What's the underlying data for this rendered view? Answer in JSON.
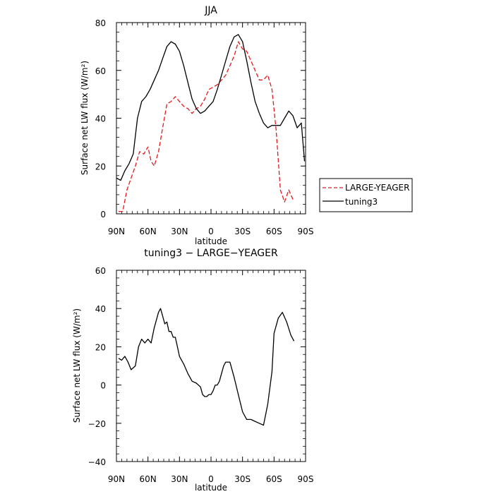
{
  "chart_data": [
    {
      "type": "line",
      "title": "JJA",
      "xlabel": "latitude",
      "ylabel": "Surface net LW flux (W/m²)",
      "xlim": [
        90,
        -90
      ],
      "ylim": [
        0,
        80
      ],
      "x_tick_labels": [
        "90N",
        "60N",
        "30N",
        "0",
        "30S",
        "60S",
        "90S"
      ],
      "y_tick_labels": [
        "0",
        "20",
        "40",
        "60",
        "80"
      ],
      "legend_position": "right",
      "series": [
        {
          "name": "LARGE-YEAGER",
          "color": "#e41a1c",
          "dash": "dashed",
          "x": [
            88,
            84,
            80,
            76,
            72,
            68,
            64,
            60,
            57,
            54,
            50,
            46,
            42,
            38,
            34,
            30,
            26,
            22,
            18,
            14,
            10,
            6,
            2,
            -2,
            -6,
            -10,
            -14,
            -18,
            -22,
            -26,
            -30,
            -34,
            -38,
            -42,
            -46,
            -50,
            -54,
            -58,
            -62,
            -66,
            -70,
            -74,
            -78
          ],
          "y": [
            1,
            1,
            10,
            15,
            20,
            26,
            25,
            28,
            22,
            20,
            26,
            36,
            46,
            47,
            49,
            47,
            45,
            44,
            42,
            44,
            45,
            48,
            52,
            53,
            54,
            56,
            58,
            62,
            66,
            72,
            69,
            68,
            64,
            60,
            56,
            56,
            58,
            52,
            35,
            10,
            5,
            10,
            6
          ]
        },
        {
          "name": "tuning3",
          "color": "#000000",
          "dash": "solid",
          "x": [
            90,
            86,
            82,
            78,
            74,
            70,
            66,
            62,
            58,
            54,
            50,
            46,
            42,
            38,
            34,
            30,
            26,
            22,
            18,
            14,
            10,
            6,
            2,
            -2,
            -6,
            -10,
            -14,
            -18,
            -22,
            -26,
            -30,
            -34,
            -38,
            -42,
            -46,
            -50,
            -54,
            -58,
            -62,
            -66,
            -70,
            -74,
            -78,
            -82,
            -86,
            -89
          ],
          "y": [
            15,
            14,
            18,
            21,
            25,
            40,
            47,
            49,
            52,
            56,
            60,
            65,
            70,
            72,
            71,
            68,
            62,
            55,
            48,
            44,
            42,
            43,
            45,
            47,
            52,
            58,
            64,
            70,
            74,
            75,
            72,
            64,
            55,
            47,
            42,
            38,
            36,
            37,
            37,
            37,
            40,
            43,
            41,
            36,
            38,
            22
          ]
        }
      ]
    },
    {
      "type": "line",
      "title": "tuning3 − LARGE−YEAGER",
      "xlabel": "latitude",
      "ylabel": "Surface net LW flux (W/m²)",
      "xlim": [
        90,
        -90
      ],
      "ylim": [
        -40,
        60
      ],
      "x_tick_labels": [
        "90N",
        "60N",
        "30N",
        "0",
        "30S",
        "60S",
        "90S"
      ],
      "y_tick_labels": [
        "−40",
        "−20",
        "0",
        "20",
        "40",
        "60"
      ],
      "series": [
        {
          "name": "tuning3 - LARGE-YEAGER",
          "color": "#000000",
          "dash": "solid",
          "x": [
            88,
            85,
            82,
            79,
            76,
            72,
            69,
            66,
            63,
            60,
            57,
            54,
            50,
            48,
            46,
            44,
            42,
            40,
            38,
            36,
            34,
            32,
            30,
            28,
            26,
            22,
            18,
            14,
            10,
            8,
            6,
            4,
            2,
            0,
            -2,
            -4,
            -6,
            -8,
            -10,
            -12,
            -14,
            -18,
            -22,
            -26,
            -30,
            -34,
            -38,
            -42,
            -46,
            -50,
            -54,
            -58,
            -60,
            -64,
            -68,
            -72,
            -76,
            -79
          ],
          "y": [
            14,
            13,
            15,
            12,
            8,
            10,
            20,
            24,
            22,
            24,
            22,
            30,
            38,
            40,
            36,
            32,
            33,
            28,
            28,
            25,
            25,
            20,
            15,
            13,
            11,
            6,
            2,
            1,
            -1,
            -5,
            -6,
            -6,
            -5,
            -5,
            -3,
            0,
            0,
            2,
            6,
            10,
            12,
            12,
            4,
            -5,
            -14,
            -18,
            -18,
            -19,
            -20,
            -21,
            -10,
            7,
            27,
            35,
            38,
            33,
            26,
            23
          ]
        }
      ]
    }
  ]
}
